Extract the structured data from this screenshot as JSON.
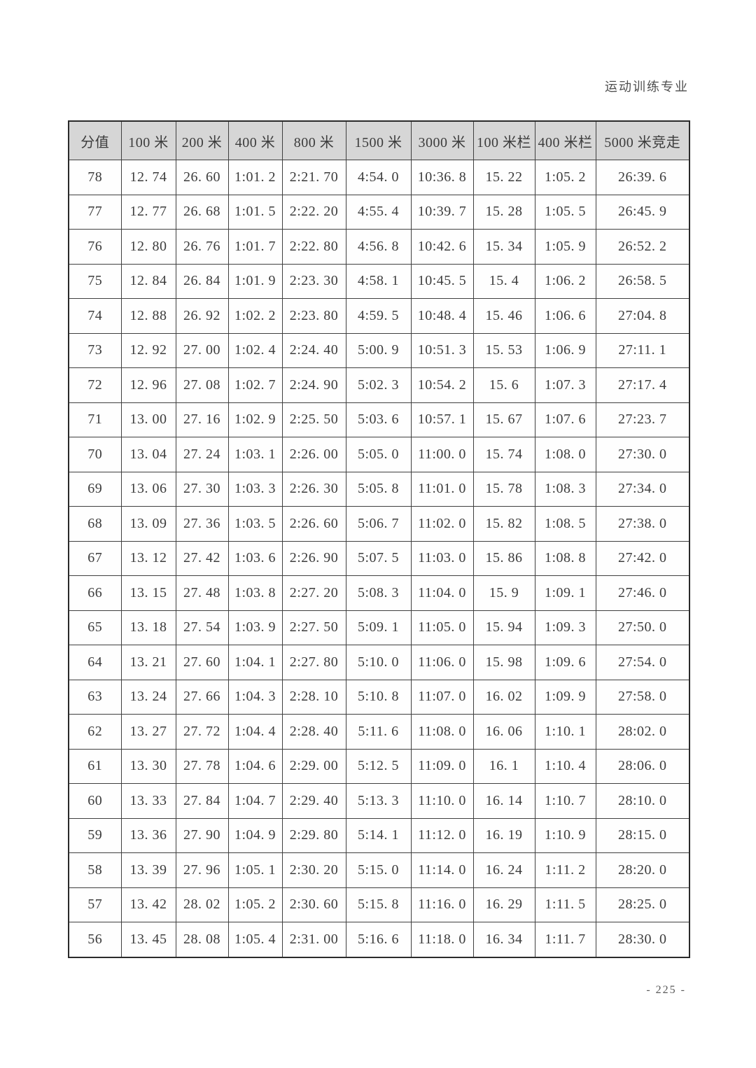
{
  "page": {
    "header_right": "运动训练专业",
    "page_number": "- 225 -"
  },
  "table": {
    "columns": [
      "分值",
      "100 米",
      "200 米",
      "400 米",
      "800 米",
      "1500 米",
      "3000 米",
      "100 米栏",
      "400 米栏",
      "5000 米竞走"
    ],
    "rows": [
      [
        "78",
        "12. 74",
        "26. 60",
        "1:01. 2",
        "2:21. 70",
        "4:54. 0",
        "10:36. 8",
        "15. 22",
        "1:05. 2",
        "26:39. 6"
      ],
      [
        "77",
        "12. 77",
        "26. 68",
        "1:01. 5",
        "2:22. 20",
        "4:55. 4",
        "10:39. 7",
        "15. 28",
        "1:05. 5",
        "26:45. 9"
      ],
      [
        "76",
        "12. 80",
        "26. 76",
        "1:01. 7",
        "2:22. 80",
        "4:56. 8",
        "10:42. 6",
        "15. 34",
        "1:05. 9",
        "26:52. 2"
      ],
      [
        "75",
        "12. 84",
        "26. 84",
        "1:01. 9",
        "2:23. 30",
        "4:58. 1",
        "10:45. 5",
        "15. 4",
        "1:06. 2",
        "26:58. 5"
      ],
      [
        "74",
        "12. 88",
        "26. 92",
        "1:02. 2",
        "2:23. 80",
        "4:59. 5",
        "10:48. 4",
        "15. 46",
        "1:06. 6",
        "27:04. 8"
      ],
      [
        "73",
        "12. 92",
        "27. 00",
        "1:02. 4",
        "2:24. 40",
        "5:00. 9",
        "10:51. 3",
        "15. 53",
        "1:06. 9",
        "27:11. 1"
      ],
      [
        "72",
        "12. 96",
        "27. 08",
        "1:02. 7",
        "2:24. 90",
        "5:02. 3",
        "10:54. 2",
        "15. 6",
        "1:07. 3",
        "27:17. 4"
      ],
      [
        "71",
        "13. 00",
        "27. 16",
        "1:02. 9",
        "2:25. 50",
        "5:03. 6",
        "10:57. 1",
        "15. 67",
        "1:07. 6",
        "27:23. 7"
      ],
      [
        "70",
        "13. 04",
        "27. 24",
        "1:03. 1",
        "2:26. 00",
        "5:05. 0",
        "11:00. 0",
        "15. 74",
        "1:08. 0",
        "27:30. 0"
      ],
      [
        "69",
        "13. 06",
        "27. 30",
        "1:03. 3",
        "2:26. 30",
        "5:05. 8",
        "11:01. 0",
        "15. 78",
        "1:08. 3",
        "27:34. 0"
      ],
      [
        "68",
        "13. 09",
        "27. 36",
        "1:03. 5",
        "2:26. 60",
        "5:06. 7",
        "11:02. 0",
        "15. 82",
        "1:08. 5",
        "27:38. 0"
      ],
      [
        "67",
        "13. 12",
        "27. 42",
        "1:03. 6",
        "2:26. 90",
        "5:07. 5",
        "11:03. 0",
        "15. 86",
        "1:08. 8",
        "27:42. 0"
      ],
      [
        "66",
        "13. 15",
        "27. 48",
        "1:03. 8",
        "2:27. 20",
        "5:08. 3",
        "11:04. 0",
        "15. 9",
        "1:09. 1",
        "27:46. 0"
      ],
      [
        "65",
        "13. 18",
        "27. 54",
        "1:03. 9",
        "2:27. 50",
        "5:09. 1",
        "11:05. 0",
        "15. 94",
        "1:09. 3",
        "27:50. 0"
      ],
      [
        "64",
        "13. 21",
        "27. 60",
        "1:04. 1",
        "2:27. 80",
        "5:10. 0",
        "11:06. 0",
        "15. 98",
        "1:09. 6",
        "27:54. 0"
      ],
      [
        "63",
        "13. 24",
        "27. 66",
        "1:04. 3",
        "2:28. 10",
        "5:10. 8",
        "11:07. 0",
        "16. 02",
        "1:09. 9",
        "27:58. 0"
      ],
      [
        "62",
        "13. 27",
        "27. 72",
        "1:04. 4",
        "2:28. 40",
        "5:11. 6",
        "11:08. 0",
        "16. 06",
        "1:10. 1",
        "28:02. 0"
      ],
      [
        "61",
        "13. 30",
        "27. 78",
        "1:04. 6",
        "2:29. 00",
        "5:12. 5",
        "11:09. 0",
        "16. 1",
        "1:10. 4",
        "28:06. 0"
      ],
      [
        "60",
        "13. 33",
        "27. 84",
        "1:04. 7",
        "2:29. 40",
        "5:13. 3",
        "11:10. 0",
        "16. 14",
        "1:10. 7",
        "28:10. 0"
      ],
      [
        "59",
        "13. 36",
        "27. 90",
        "1:04. 9",
        "2:29. 80",
        "5:14. 1",
        "11:12. 0",
        "16. 19",
        "1:10. 9",
        "28:15. 0"
      ],
      [
        "58",
        "13. 39",
        "27. 96",
        "1:05. 1",
        "2:30. 20",
        "5:15. 0",
        "11:14. 0",
        "16. 24",
        "1:11. 2",
        "28:20. 0"
      ],
      [
        "57",
        "13. 42",
        "28. 02",
        "1:05. 2",
        "2:30. 60",
        "5:15. 8",
        "11:16. 0",
        "16. 29",
        "1:11. 5",
        "28:25. 0"
      ],
      [
        "56",
        "13. 45",
        "28. 08",
        "1:05. 4",
        "2:31. 00",
        "5:16. 6",
        "11:18. 0",
        "16. 34",
        "1:11. 7",
        "28:30. 0"
      ]
    ]
  }
}
